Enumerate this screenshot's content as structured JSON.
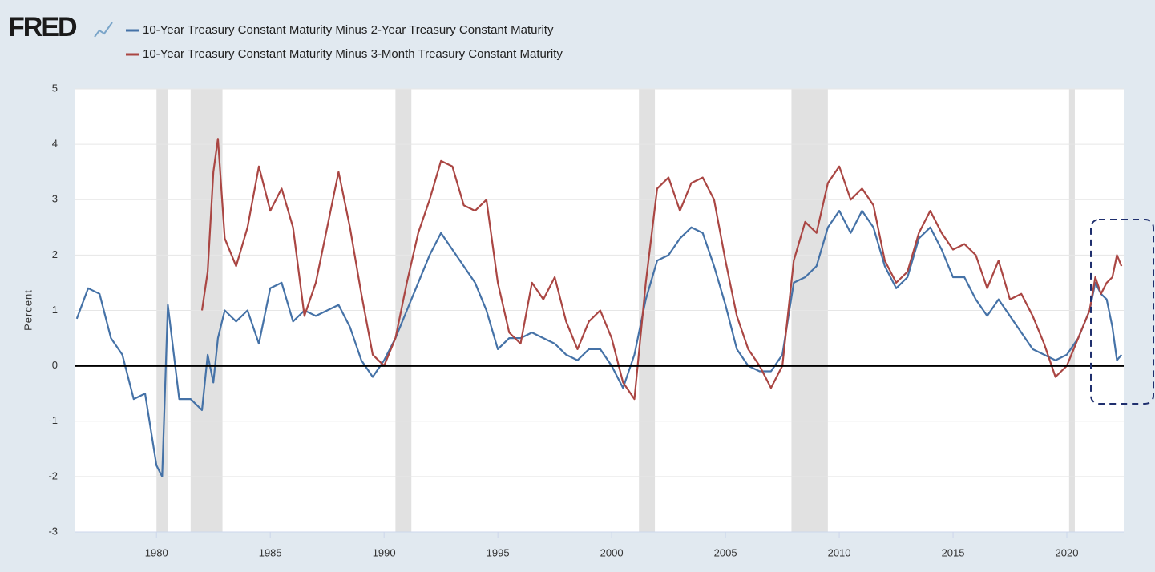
{
  "chart_data": {
    "type": "line",
    "logo": "FRED",
    "y_label": "Percent",
    "x": [
      1976.5,
      1977,
      1977.5,
      1978,
      1978.5,
      1979,
      1979.5,
      1980,
      1980.25,
      1980.5,
      1981,
      1981.5,
      1982,
      1982.25,
      1982.5,
      1982.7,
      1983,
      1983.5,
      1984,
      1984.5,
      1985,
      1985.5,
      1986,
      1986.5,
      1987,
      1987.5,
      1988,
      1988.5,
      1989,
      1989.5,
      1990,
      1990.5,
      1991,
      1991.5,
      1992,
      1992.5,
      1993,
      1993.5,
      1994,
      1994.5,
      1995,
      1995.5,
      1996,
      1996.5,
      1997,
      1997.5,
      1998,
      1998.5,
      1999,
      1999.5,
      2000,
      2000.5,
      2001,
      2001.5,
      2002,
      2002.5,
      2003,
      2003.5,
      2004,
      2004.5,
      2005,
      2005.5,
      2006,
      2006.5,
      2007,
      2007.5,
      2008,
      2008.5,
      2009,
      2009.5,
      2010,
      2010.5,
      2011,
      2011.5,
      2012,
      2012.5,
      2013,
      2013.5,
      2014,
      2014.5,
      2015,
      2015.5,
      2016,
      2016.5,
      2017,
      2017.5,
      2018,
      2018.5,
      2019,
      2019.5,
      2020,
      2020.5,
      2021,
      2021.25,
      2021.5,
      2021.75,
      2022,
      2022.2,
      2022.4
    ],
    "series": [
      {
        "name": "10-Year Treasury Constant Maturity Minus 2-Year Treasury Constant Maturity",
        "color": "#4572a7",
        "values": [
          0.85,
          1.4,
          1.3,
          0.5,
          0.2,
          -0.6,
          -0.5,
          -1.8,
          -2.0,
          1.1,
          -0.6,
          -0.6,
          -0.8,
          0.2,
          -0.3,
          0.5,
          1.0,
          0.8,
          1.0,
          0.4,
          1.4,
          1.5,
          0.8,
          1.0,
          0.9,
          1.0,
          1.1,
          0.7,
          0.1,
          -0.2,
          0.1,
          0.5,
          1.0,
          1.5,
          2.0,
          2.4,
          2.1,
          1.8,
          1.5,
          1.0,
          0.3,
          0.5,
          0.5,
          0.6,
          0.5,
          0.4,
          0.2,
          0.1,
          0.3,
          0.3,
          0.0,
          -0.4,
          0.2,
          1.2,
          1.9,
          2.0,
          2.3,
          2.5,
          2.4,
          1.8,
          1.1,
          0.3,
          0.0,
          -0.1,
          -0.1,
          0.2,
          1.5,
          1.6,
          1.8,
          2.5,
          2.8,
          2.4,
          2.8,
          2.5,
          1.8,
          1.4,
          1.6,
          2.3,
          2.5,
          2.1,
          1.6,
          1.6,
          1.2,
          0.9,
          1.2,
          0.9,
          0.6,
          0.3,
          0.2,
          0.1,
          0.2,
          0.5,
          1.0,
          1.5,
          1.3,
          1.2,
          0.7,
          0.1,
          0.2
        ]
      },
      {
        "name": "10-Year Treasury Constant Maturity Minus 3-Month Treasury Constant Maturity",
        "color": "#aa4643",
        "values": [
          null,
          null,
          null,
          null,
          null,
          null,
          null,
          null,
          null,
          null,
          null,
          null,
          1.0,
          1.7,
          3.5,
          4.1,
          2.3,
          1.8,
          2.5,
          3.6,
          2.8,
          3.2,
          2.5,
          0.9,
          1.5,
          2.5,
          3.5,
          2.5,
          1.3,
          0.2,
          0.0,
          0.5,
          1.5,
          2.4,
          3.0,
          3.7,
          3.6,
          2.9,
          2.8,
          3.0,
          1.5,
          0.6,
          0.4,
          1.5,
          1.2,
          1.6,
          0.8,
          0.3,
          0.8,
          1.0,
          0.5,
          -0.3,
          -0.6,
          1.5,
          3.2,
          3.4,
          2.8,
          3.3,
          3.4,
          3.0,
          1.9,
          0.9,
          0.3,
          0.0,
          -0.4,
          0.0,
          1.9,
          2.6,
          2.4,
          3.3,
          3.6,
          3.0,
          3.2,
          2.9,
          1.9,
          1.5,
          1.7,
          2.4,
          2.8,
          2.4,
          2.1,
          2.2,
          2.0,
          1.4,
          1.9,
          1.2,
          1.3,
          0.9,
          0.4,
          -0.2,
          0.0,
          0.5,
          1.0,
          1.6,
          1.3,
          1.5,
          1.6,
          2.0,
          1.8
        ]
      }
    ],
    "recessions": [
      [
        1980.0,
        1980.5
      ],
      [
        1981.5,
        1982.9
      ],
      [
        1990.5,
        1991.2
      ],
      [
        2001.2,
        2001.9
      ],
      [
        2007.9,
        2009.5
      ],
      [
        2020.1,
        2020.35
      ]
    ],
    "xlim": [
      1976.4,
      2022.5
    ],
    "xticks": [
      1980,
      1985,
      1990,
      1995,
      2000,
      2005,
      2010,
      2015,
      2020
    ],
    "ylim": [
      -3,
      5
    ],
    "yticks": [
      -3,
      -2,
      -1,
      0,
      1,
      2,
      3,
      4,
      5
    ],
    "grid": true
  }
}
